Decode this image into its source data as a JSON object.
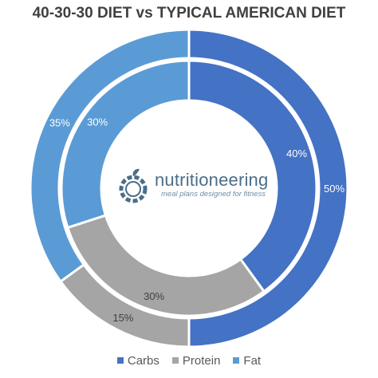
{
  "chart_data": {
    "type": "doughnut",
    "title": "40-30-30 DIET vs TYPICAL AMERICAN DIET",
    "categories": [
      "Carbs",
      "Protein",
      "Fat"
    ],
    "colors": [
      "#4472c4",
      "#a5a5a5",
      "#5b9bd5"
    ],
    "series": [
      {
        "ring": "inner",
        "values": [
          40,
          30,
          30
        ],
        "labels": [
          "40%",
          "30%",
          "30%"
        ]
      },
      {
        "ring": "outer",
        "values": [
          50,
          15,
          35
        ],
        "labels": [
          "50%",
          "15%",
          "35%"
        ]
      }
    ],
    "legend_position": "bottom"
  },
  "logo": {
    "name": "nutritioneering",
    "tagline": "meal plans designed for fitness",
    "icon": "apple-gear-icon"
  }
}
